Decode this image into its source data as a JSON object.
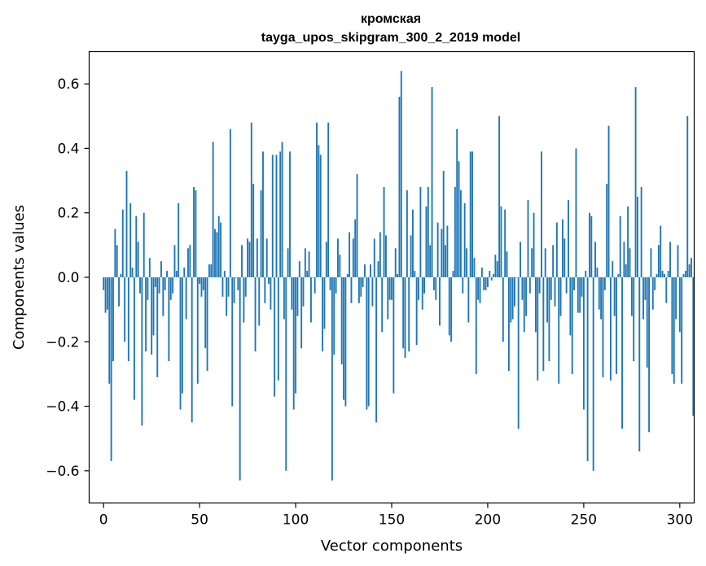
{
  "chart_data": {
    "type": "bar",
    "title": "кромская",
    "subtitle": "tayga_upos_skipgram_300_2_2019 model",
    "xlabel": "Vector components",
    "ylabel": "Components values",
    "xlim": [
      -7.5,
      307.5
    ],
    "ylim": [
      -0.7,
      0.7
    ],
    "xticks": [
      0,
      50,
      100,
      150,
      200,
      250,
      300
    ],
    "yticks": [
      -0.6,
      -0.4,
      -0.2,
      0.0,
      0.2,
      0.4,
      0.6
    ],
    "xtick_labels": [
      "0",
      "50",
      "100",
      "150",
      "200",
      "250",
      "300"
    ],
    "ytick_labels": [
      "−0.6",
      "−0.4",
      "−0.2",
      "0.0",
      "0.2",
      "0.4",
      "0.6"
    ],
    "bar_color": "#1f77b4",
    "grid": false,
    "values": [
      -0.04,
      -0.11,
      -0.1,
      -0.33,
      -0.57,
      -0.26,
      0.15,
      0.1,
      -0.09,
      0.01,
      0.21,
      -0.2,
      0.33,
      -0.26,
      0.23,
      0.03,
      -0.38,
      0.19,
      0.11,
      -0.05,
      -0.46,
      0.2,
      -0.23,
      -0.07,
      0.06,
      -0.24,
      -0.18,
      -0.03,
      -0.31,
      -0.05,
      0.05,
      -0.12,
      -0.04,
      0.02,
      -0.26,
      -0.07,
      -0.05,
      0.1,
      0.02,
      0.23,
      -0.41,
      -0.36,
      0.03,
      -0.13,
      0.09,
      0.1,
      -0.45,
      0.28,
      0.27,
      -0.33,
      -0.02,
      -0.06,
      -0.04,
      -0.22,
      -0.29,
      0.04,
      0.04,
      0.42,
      0.15,
      0.14,
      0.19,
      0.17,
      -0.06,
      0.02,
      -0.12,
      -0.06,
      0.46,
      -0.4,
      -0.08,
      0.0,
      -0.04,
      -0.63,
      0.1,
      -0.14,
      -0.06,
      0.12,
      0.11,
      0.48,
      0.29,
      -0.23,
      0.12,
      -0.15,
      0.27,
      0.39,
      -0.08,
      0.12,
      -0.02,
      -0.1,
      0.38,
      -0.37,
      0.38,
      -0.32,
      0.39,
      0.42,
      -0.13,
      -0.6,
      0.09,
      0.39,
      -0.1,
      -0.41,
      -0.36,
      -0.12,
      0.05,
      -0.22,
      -0.09,
      0.09,
      0.02,
      0.08,
      -0.14,
      0.0,
      -0.05,
      0.48,
      0.41,
      0.38,
      -0.23,
      -0.16,
      0.11,
      0.48,
      -0.04,
      -0.63,
      -0.24,
      -0.05,
      0.12,
      0.07,
      -0.27,
      -0.38,
      -0.4,
      0.01,
      0.14,
      -0.08,
      0.12,
      0.18,
      0.32,
      -0.08,
      -0.06,
      -0.03,
      0.04,
      -0.41,
      -0.4,
      0.04,
      -0.09,
      0.12,
      -0.45,
      0.05,
      0.14,
      -0.17,
      0.28,
      0.13,
      -0.13,
      -0.07,
      -0.07,
      -0.36,
      0.09,
      0.01,
      0.56,
      0.64,
      -0.22,
      -0.25,
      0.27,
      -0.23,
      0.13,
      0.21,
      0.02,
      -0.21,
      -0.07,
      0.28,
      -0.1,
      -0.05,
      0.22,
      0.28,
      0.1,
      0.59,
      -0.04,
      -0.07,
      0.17,
      -0.15,
      0.15,
      0.33,
      0.1,
      0.16,
      -0.18,
      -0.2,
      0.02,
      0.28,
      0.46,
      0.36,
      0.27,
      -0.05,
      0.23,
      0.09,
      -0.14,
      0.39,
      0.39,
      0.06,
      -0.3,
      -0.07,
      -0.08,
      0.03,
      -0.04,
      -0.04,
      -0.03,
      0.02,
      -0.01,
      0.01,
      0.07,
      0.05,
      0.5,
      0.22,
      -0.2,
      0.21,
      0.08,
      -0.29,
      -0.14,
      -0.13,
      -0.09,
      0.0,
      -0.47,
      0.11,
      -0.07,
      -0.17,
      -0.12,
      0.24,
      -0.05,
      0.09,
      0.2,
      -0.17,
      -0.32,
      -0.05,
      0.39,
      -0.29,
      0.09,
      -0.14,
      -0.26,
      -0.07,
      0.1,
      -0.09,
      0.17,
      -0.33,
      -0.12,
      0.18,
      0.12,
      -0.05,
      0.24,
      -0.18,
      -0.3,
      -0.04,
      0.4,
      -0.11,
      -0.11,
      -0.06,
      -0.41,
      0.02,
      -0.57,
      0.2,
      0.19,
      -0.6,
      0.11,
      0.03,
      -0.1,
      -0.13,
      -0.31,
      -0.04,
      0.29,
      0.47,
      -0.32,
      0.05,
      -0.12,
      -0.3,
      0.01,
      0.19,
      -0.47,
      0.11,
      0.04,
      0.22,
      0.09,
      -0.12,
      -0.26,
      0.59,
      0.25,
      -0.54,
      0.28,
      -0.13,
      -0.07,
      -0.28,
      -0.48,
      0.09,
      -0.1,
      -0.04,
      0.01,
      0.1,
      0.16,
      0.02,
      0.01,
      -0.08,
      0.02,
      0.11,
      -0.3,
      -0.33,
      -0.13,
      0.1,
      -0.17,
      -0.33,
      0.01,
      0.02,
      0.5,
      0.04,
      0.06,
      -0.43
    ]
  }
}
